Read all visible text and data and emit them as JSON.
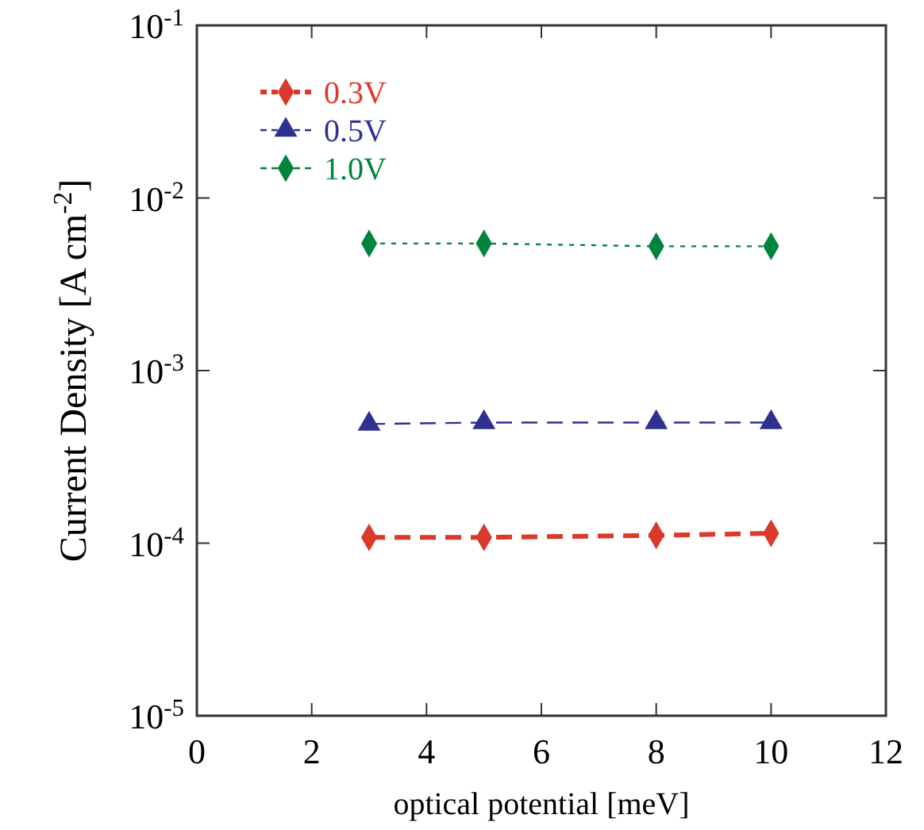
{
  "chart_data": {
    "type": "line",
    "xlabel": "optical potential [meV]",
    "ylabel": "Current Density  [A cm$^{-2}$]",
    "log": "y",
    "x": [
      3,
      5,
      8,
      10
    ],
    "xlim": [
      0,
      12
    ],
    "xticks": [
      0,
      2,
      4,
      6,
      8,
      10,
      12
    ],
    "ylim": [
      1e-05,
      0.1
    ],
    "yticks": [
      {
        "value": 1e-05,
        "label": "10$^{-5}$"
      },
      {
        "value": 0.0001,
        "label": "10$^{-4}$"
      },
      {
        "value": 0.001,
        "label": "10$^{-3}$"
      },
      {
        "value": 0.01,
        "label": "10$^{-2}$"
      },
      {
        "value": 0.1,
        "label": "10$^{-1}$"
      }
    ],
    "grid": false,
    "legend": "top left",
    "series": [
      {
        "name": "0.3V",
        "color": "#d93a2b",
        "values": [
          0.000108,
          0.000108,
          0.000111,
          0.000114
        ],
        "marker": "diamond",
        "line_style": "dashed"
      },
      {
        "name": "0.5V",
        "color": "#2e3192",
        "values": [
          0.00049,
          0.0005,
          0.0005,
          0.0005
        ],
        "marker": "triangle",
        "line_style": "dashed"
      },
      {
        "name": "1.0V",
        "color": "#00843d",
        "values": [
          0.00545,
          0.00545,
          0.00525,
          0.00525
        ],
        "marker": "diamond",
        "line_style": "dotted"
      }
    ]
  }
}
